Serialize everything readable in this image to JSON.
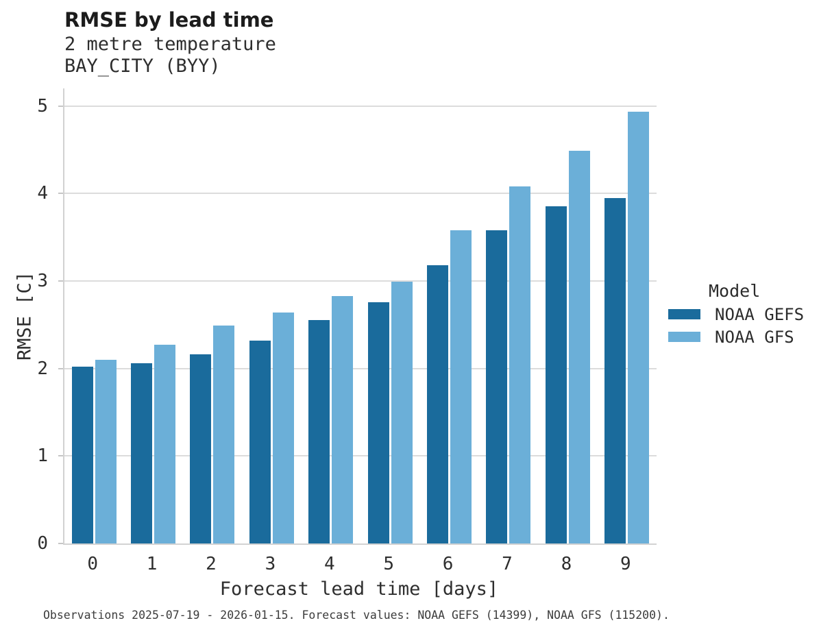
{
  "header": {
    "title": "RMSE by lead time",
    "subtitle_line1": "2 metre temperature",
    "subtitle_line2": "BAY_CITY (BYY)"
  },
  "chart_data": {
    "type": "bar",
    "title": "RMSE by lead time",
    "subtitle": [
      "2 metre temperature",
      "BAY_CITY (BYY)"
    ],
    "xlabel": "Forecast lead time [days]",
    "ylabel": "RMSE [C]",
    "categories": [
      "0",
      "1",
      "2",
      "3",
      "4",
      "5",
      "6",
      "7",
      "8",
      "9"
    ],
    "series": [
      {
        "name": "NOAA GEFS",
        "color": "#1a6b9c",
        "values": [
          2.02,
          2.06,
          2.16,
          2.32,
          2.55,
          2.76,
          3.18,
          3.58,
          3.85,
          3.95
        ]
      },
      {
        "name": "NOAA GFS",
        "color": "#6bafd8",
        "values": [
          2.1,
          2.27,
          2.49,
          2.64,
          2.83,
          2.99,
          3.58,
          4.08,
          4.49,
          4.93
        ]
      }
    ],
    "ylim": [
      0,
      5.2
    ],
    "yticks": [
      0,
      1,
      2,
      3,
      4,
      5
    ],
    "grid": true,
    "legend_title": "Model",
    "legend_position": "right",
    "bar_mode": "grouped"
  },
  "legend": {
    "title": "Model",
    "entries": [
      "NOAA GEFS",
      "NOAA GFS"
    ]
  },
  "axes": {
    "x_title": "Forecast lead time [days]",
    "y_title": "RMSE [C]"
  },
  "caption": {
    "text": "Observations 2025-07-19 - 2026-01-15. Forecast values: NOAA GEFS (14399), NOAA GFS (115200)."
  },
  "colors": {
    "series_dark_blue": "#1a6b9c",
    "series_light_blue": "#6bafd8",
    "gridline": "#dcdcdc",
    "axis_line": "#d2d2d2",
    "text": "#2b2b2b"
  }
}
